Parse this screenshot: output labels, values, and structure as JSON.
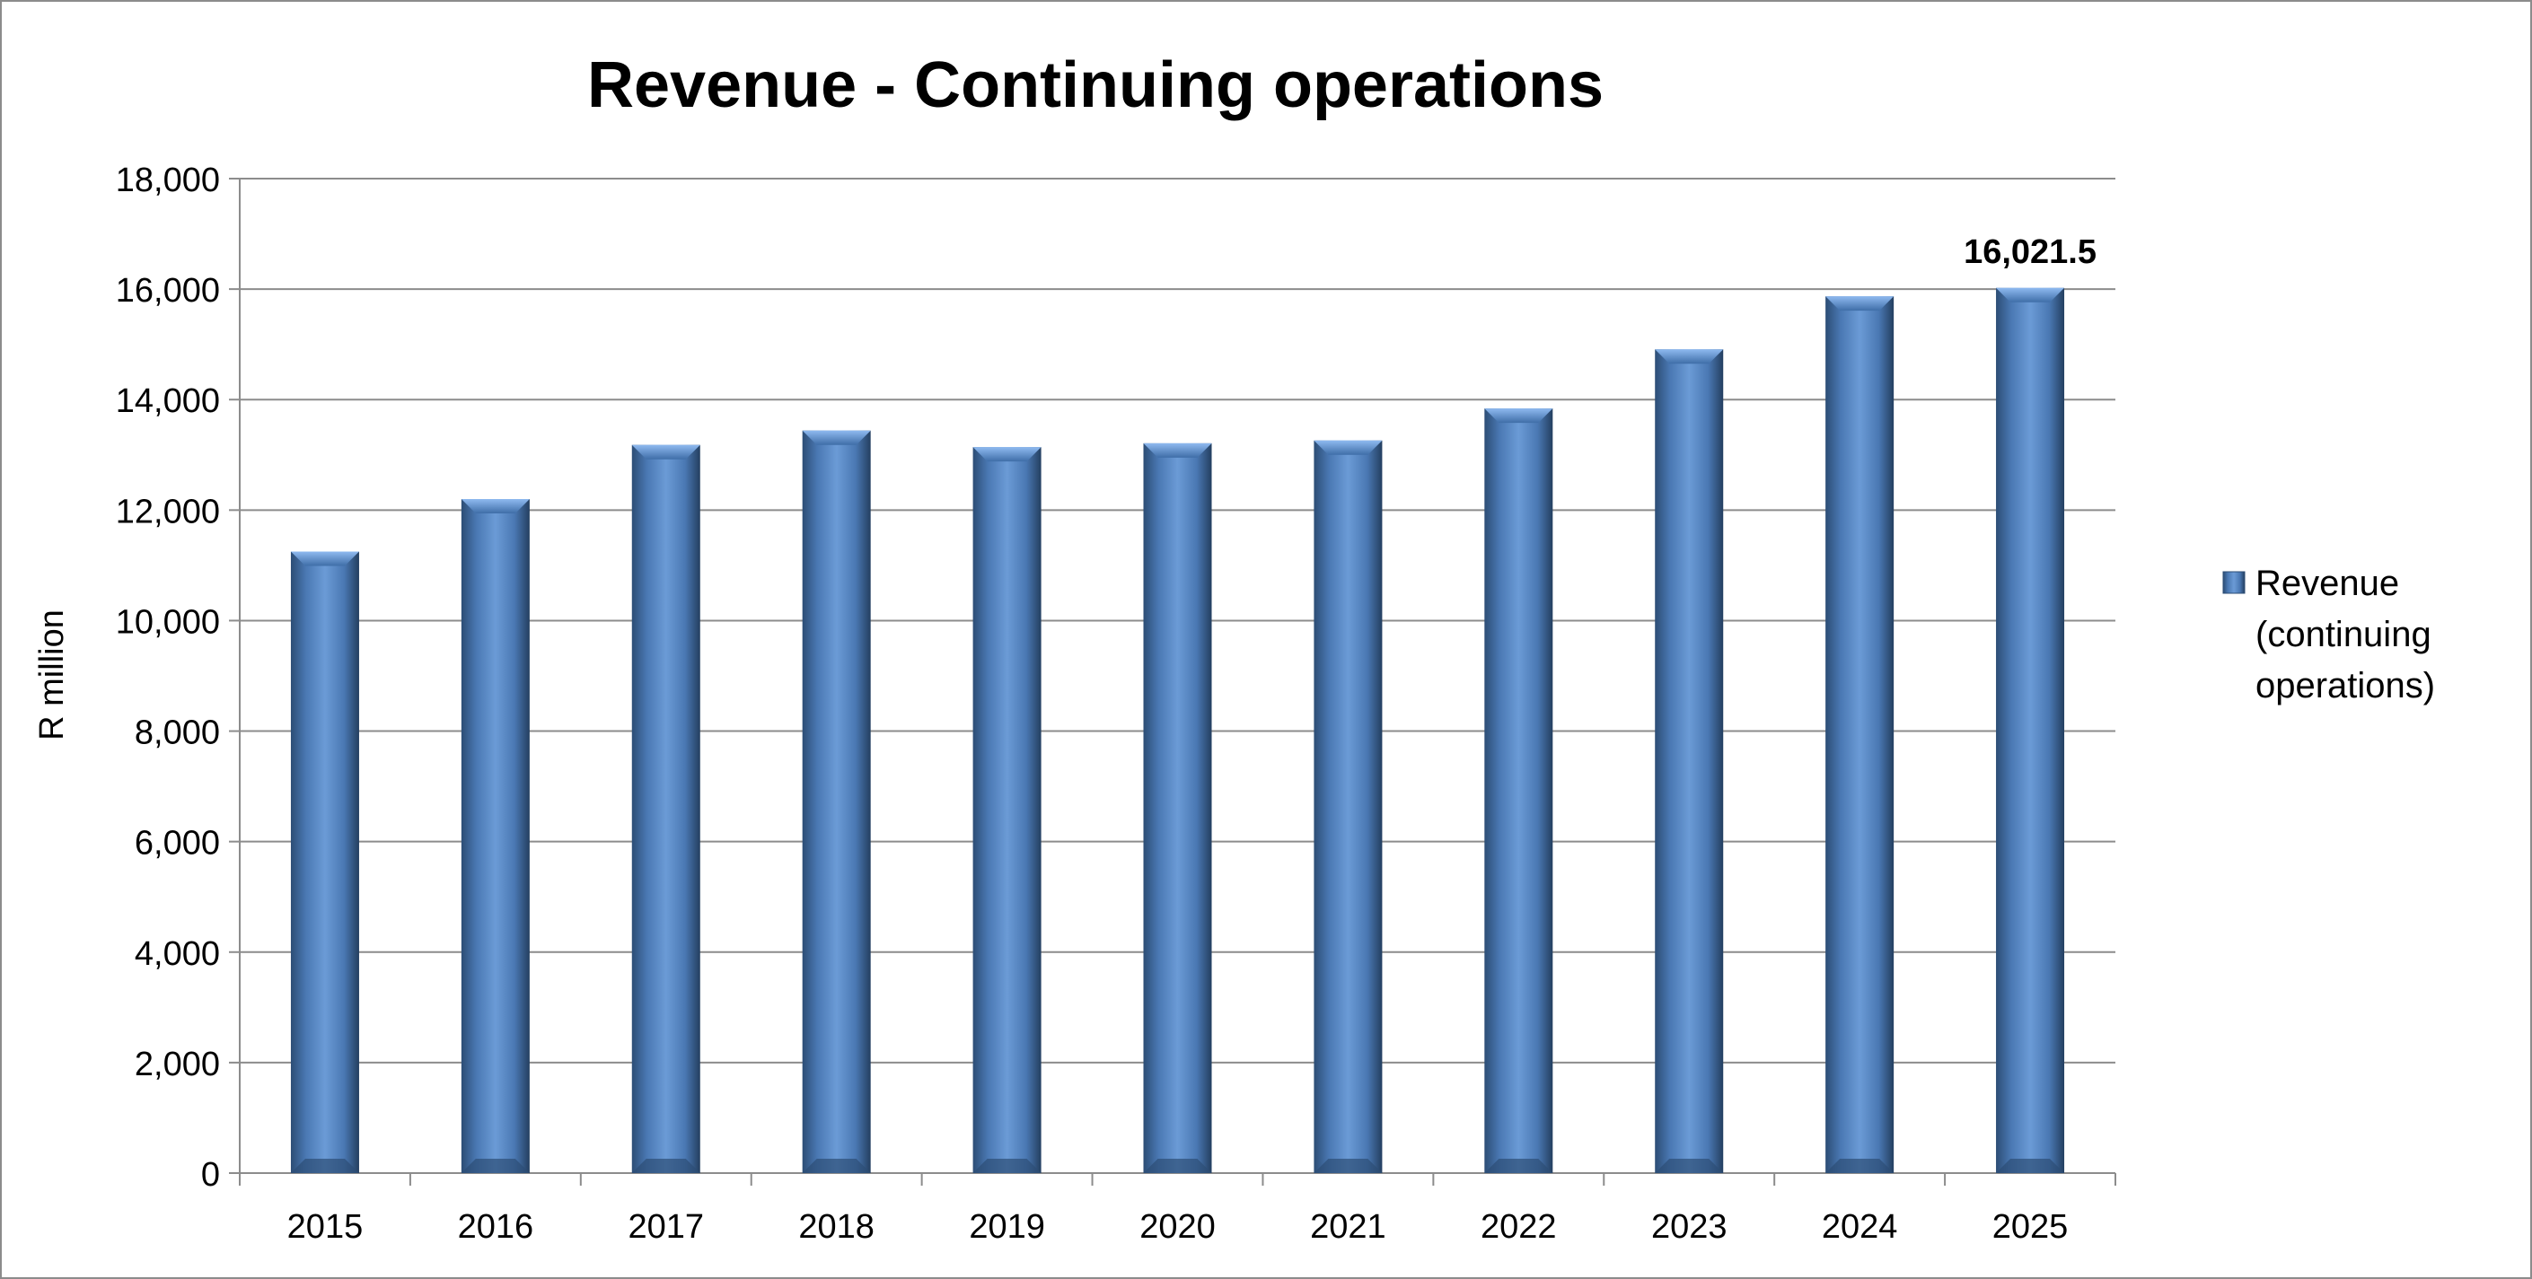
{
  "chart_data": {
    "type": "bar",
    "title": "Revenue - Continuing operations",
    "ylabel": "R million",
    "xlabel": "",
    "categories": [
      "2015",
      "2016",
      "2017",
      "2018",
      "2019",
      "2020",
      "2021",
      "2022",
      "2023",
      "2024",
      "2025"
    ],
    "series": [
      {
        "name": "Revenue (continuing operations)",
        "legend_lines": [
          "Revenue",
          "(continuing",
          "operations)"
        ],
        "values": [
          11250,
          12200,
          13180,
          13440,
          13140,
          13210,
          13260,
          13840,
          14910,
          15870,
          16021.5
        ]
      }
    ],
    "data_labels": [
      {
        "category": "2025",
        "text": "16,021.5"
      }
    ],
    "ylim": [
      0,
      18000
    ],
    "yticks": [
      "0",
      "2,000",
      "4,000",
      "6,000",
      "8,000",
      "10,000",
      "12,000",
      "14,000",
      "16,000",
      "18,000"
    ],
    "ytick_values": [
      0,
      2000,
      4000,
      6000,
      8000,
      10000,
      12000,
      14000,
      16000,
      18000
    ],
    "grid": true,
    "legend_position": "right",
    "colors": {
      "bar": "#4f81bd",
      "bar_light": "#6fa0dc",
      "bar_dark": "#2c4d75",
      "grid": "#8c8c8c"
    }
  }
}
